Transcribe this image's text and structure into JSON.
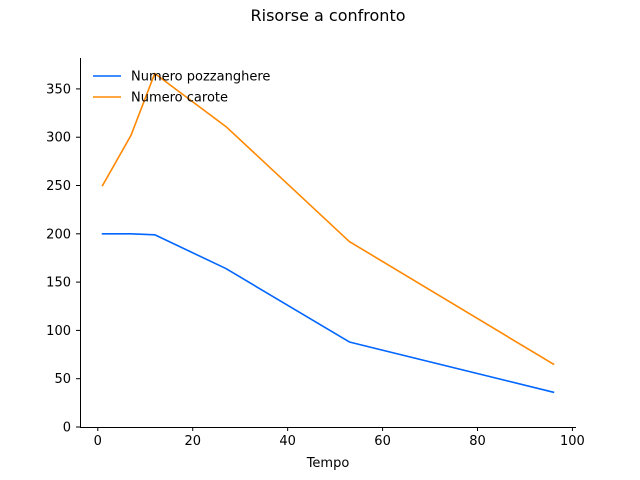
{
  "chart_data": {
    "type": "line",
    "title": "Risorse a confronto",
    "xlabel": "Tempo",
    "ylabel": "",
    "xlim": [
      -3.75,
      100.75
    ],
    "ylim": [
      0,
      382
    ],
    "xticks": [
      0,
      20,
      40,
      60,
      80,
      100
    ],
    "yticks": [
      0,
      50,
      100,
      150,
      200,
      250,
      300,
      350
    ],
    "grid": false,
    "legend_position": "top-left",
    "series": [
      {
        "name": "Numero pozzanghere",
        "color": "#0066ff",
        "x": [
          1,
          7,
          12,
          27,
          53,
          96
        ],
        "y": [
          200,
          200,
          199,
          164,
          88,
          36
        ]
      },
      {
        "name": "Numero carote",
        "color": "#ff8800",
        "x": [
          1,
          7,
          12,
          27,
          53,
          96
        ],
        "y": [
          250,
          302,
          366,
          311,
          192,
          65
        ]
      }
    ]
  }
}
